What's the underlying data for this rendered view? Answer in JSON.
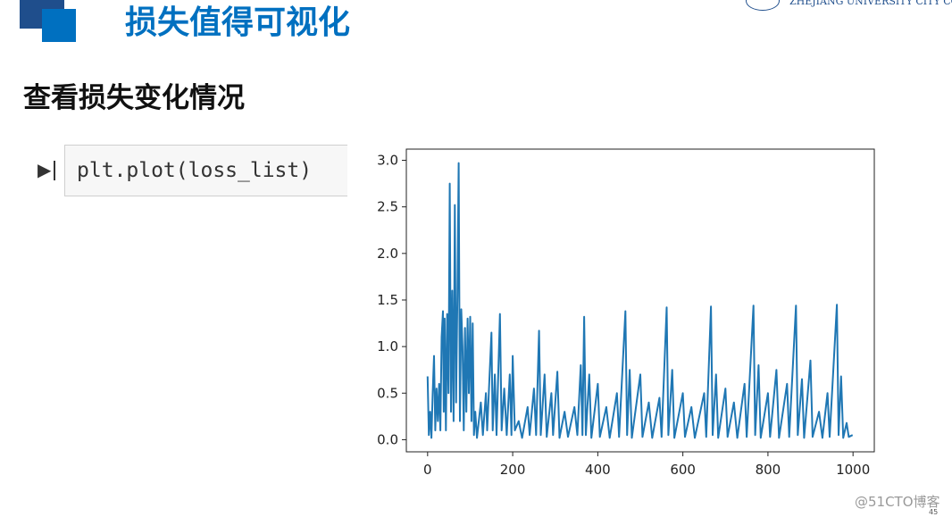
{
  "header": {
    "title": "损失值得可视化",
    "logo": "ZHEJIANG UNIVERSITY CITY CO"
  },
  "heading": "查看损失变化情况",
  "code": "plt.plot(loss_list)",
  "watermark": "@51CTO博客",
  "page_number": "45",
  "chart_data": {
    "type": "line",
    "x": [
      0,
      3,
      6,
      9,
      12,
      15,
      18,
      21,
      24,
      27,
      30,
      33,
      36,
      38,
      40,
      43,
      46,
      49,
      52,
      55,
      58,
      61,
      64,
      67,
      70,
      73,
      76,
      79,
      82,
      85,
      88,
      91,
      94,
      97,
      100,
      103,
      106,
      109,
      112,
      116,
      125,
      130,
      137,
      140,
      150,
      153,
      158,
      162,
      170,
      174,
      180,
      186,
      193,
      197,
      200,
      205,
      214,
      222,
      235,
      240,
      250,
      255,
      262,
      266,
      275,
      280,
      291,
      295,
      305,
      310,
      322,
      330,
      345,
      352,
      360,
      364,
      368,
      372,
      380,
      385,
      400,
      405,
      420,
      428,
      445,
      450,
      465,
      469,
      475,
      480,
      500,
      505,
      520,
      528,
      545,
      550,
      562,
      566,
      575,
      580,
      600,
      605,
      620,
      628,
      650,
      655,
      666,
      670,
      678,
      683,
      700,
      705,
      720,
      728,
      745,
      750,
      766,
      770,
      778,
      783,
      800,
      805,
      820,
      826,
      845,
      850,
      866,
      870,
      880,
      885,
      900,
      905,
      920,
      928,
      940,
      945,
      962,
      966,
      972,
      977,
      985,
      990,
      999
    ],
    "series": [
      {
        "color": "#1f77b4",
        "values": [
          0.68,
          0.05,
          0.3,
          0.02,
          0.5,
          0.9,
          0.1,
          0.55,
          0.2,
          0.6,
          0.1,
          1.1,
          1.38,
          0.3,
          1.3,
          0.1,
          1.35,
          0.5,
          2.75,
          0.3,
          1.6,
          0.2,
          2.52,
          0.4,
          1.55,
          2.97,
          0.2,
          1.4,
          1.0,
          0.1,
          1.2,
          0.3,
          1.3,
          0.5,
          1.32,
          0.2,
          1.25,
          0.05,
          0.3,
          0.02,
          0.4,
          0.05,
          0.5,
          0.1,
          1.15,
          0.1,
          0.7,
          0.05,
          1.35,
          0.1,
          0.55,
          0.05,
          0.7,
          0.05,
          0.9,
          0.1,
          0.2,
          0.02,
          0.35,
          0.05,
          0.55,
          0.05,
          1.17,
          0.05,
          0.7,
          0.03,
          0.5,
          0.05,
          0.73,
          0.02,
          0.3,
          0.03,
          0.35,
          0.05,
          0.8,
          0.05,
          1.32,
          0.05,
          0.7,
          0.02,
          0.6,
          0.03,
          0.35,
          0.02,
          0.5,
          0.03,
          1.38,
          0.05,
          0.75,
          0.02,
          0.7,
          0.03,
          0.4,
          0.02,
          0.45,
          0.03,
          1.42,
          0.05,
          0.75,
          0.02,
          0.5,
          0.03,
          0.35,
          0.02,
          0.5,
          0.03,
          1.43,
          0.05,
          0.7,
          0.02,
          0.55,
          0.03,
          0.4,
          0.02,
          0.6,
          0.03,
          1.44,
          0.05,
          0.8,
          0.02,
          0.5,
          0.03,
          0.75,
          0.02,
          0.6,
          0.03,
          1.44,
          0.05,
          0.65,
          0.02,
          0.85,
          0.03,
          0.3,
          0.02,
          0.5,
          0.03,
          1.45,
          0.05,
          0.68,
          0.02,
          0.18,
          0.03,
          0.05
        ]
      }
    ],
    "xlim": [
      -50,
      1050
    ],
    "xticks": [
      0,
      200,
      400,
      600,
      800,
      1000
    ],
    "ylim": [
      -0.13,
      3.12
    ],
    "yticks": [
      {
        "value": 0,
        "label": "0.0"
      },
      {
        "value": 0.5,
        "label": "0.5"
      },
      {
        "value": 1,
        "label": "1.0"
      },
      {
        "value": 1.5,
        "label": "1.5"
      },
      {
        "value": 2,
        "label": "2.0"
      },
      {
        "value": 2.5,
        "label": "2.5"
      },
      {
        "value": 3,
        "label": "3.0"
      }
    ]
  }
}
